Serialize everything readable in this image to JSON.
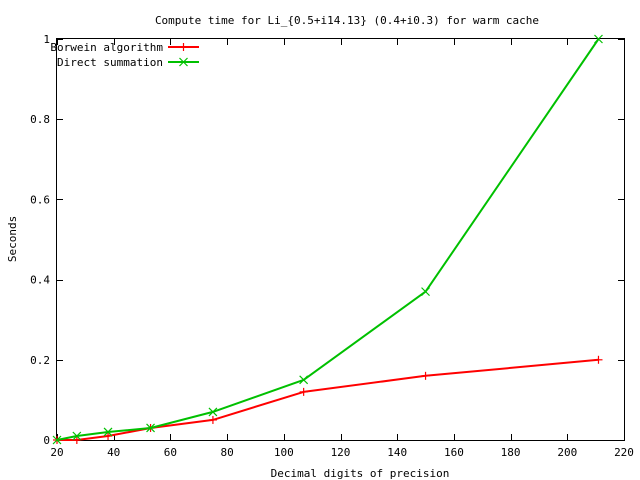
{
  "chart_data": {
    "type": "line",
    "title": "Compute time for Li_{0.5+i14.13} (0.4+i0.3) for warm cache",
    "xlabel": "Decimal digits of precision",
    "ylabel": "Seconds",
    "xlim": [
      20,
      220
    ],
    "ylim": [
      0,
      1
    ],
    "xticks": [
      "20",
      "40",
      "60",
      "80",
      "100",
      "120",
      "140",
      "160",
      "180",
      "200",
      "220"
    ],
    "yticks": [
      "0",
      "0.2",
      "0.4",
      "0.6",
      "0.8",
      "1"
    ],
    "grid": false,
    "legend_position": "top-left",
    "series": [
      {
        "name": "Borwein algorithm",
        "color": "#ff0000",
        "marker": "plus",
        "x": [
          20,
          27,
          38,
          53,
          75,
          107,
          150,
          211
        ],
        "y": [
          0.0,
          0.0,
          0.01,
          0.03,
          0.05,
          0.12,
          0.16,
          0.2
        ]
      },
      {
        "name": "Direct summation",
        "color": "#00c000",
        "marker": "cross",
        "x": [
          20,
          27,
          38,
          53,
          75,
          107,
          150,
          211
        ],
        "y": [
          0.0,
          0.01,
          0.02,
          0.03,
          0.07,
          0.15,
          0.37,
          1.0
        ]
      }
    ]
  }
}
